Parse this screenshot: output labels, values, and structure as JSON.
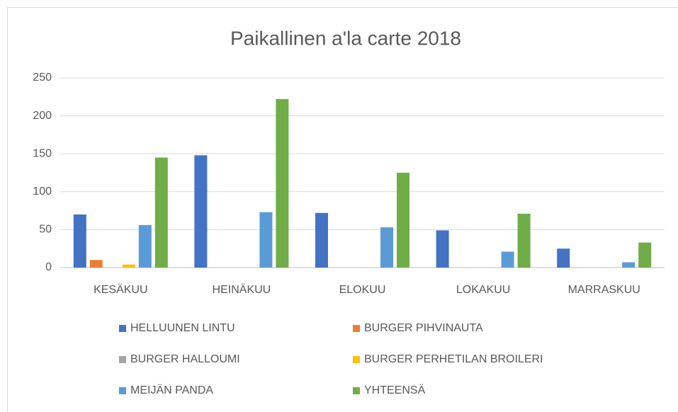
{
  "chart_data": {
    "type": "bar",
    "title": "Paikallinen a'la carte 2018",
    "categories": [
      "KESÄKUU",
      "HEINÄKUU",
      "ELOKUU",
      "LOKAKUU",
      "MARRASKUU"
    ],
    "series": [
      {
        "name": "HELLUUNEN LINTU",
        "color": "#4472c4",
        "values": [
          70,
          148,
          72,
          49,
          25
        ]
      },
      {
        "name": "BURGER PIHVINAUTA",
        "color": "#ed7d31",
        "values": [
          10,
          0,
          0,
          0,
          0
        ]
      },
      {
        "name": "BURGER HALLOUMI",
        "color": "#a5a5a5",
        "values": [
          0,
          0,
          0,
          0,
          0
        ]
      },
      {
        "name": "BURGER PERHETILAN BROILERI",
        "color": "#ffc000",
        "values": [
          4,
          0,
          0,
          0,
          0
        ]
      },
      {
        "name": "MEIJÄN PANDA",
        "color": "#5b9bd5",
        "values": [
          56,
          73,
          53,
          21,
          7
        ]
      },
      {
        "name": "YHTEENSÄ",
        "color": "#70ad47",
        "values": [
          145,
          222,
          125,
          71,
          33
        ]
      }
    ],
    "ylim": [
      0,
      250
    ],
    "yticks": [
      0,
      50,
      100,
      150,
      200,
      250
    ],
    "grid": true
  }
}
